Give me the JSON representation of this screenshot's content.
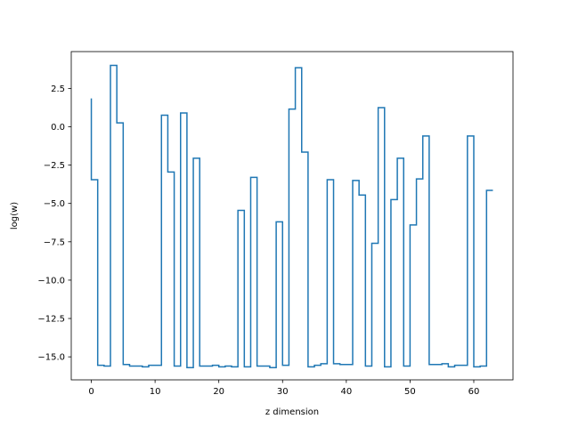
{
  "chart_data": {
    "type": "line",
    "drawstyle": "steps-pre",
    "xlabel": "z dimension",
    "ylabel": "log(w)",
    "xlim": [
      -3.15,
      66.15
    ],
    "ylim": [
      -16.5,
      4.9
    ],
    "grid": false,
    "x_ticks": [
      0,
      10,
      20,
      30,
      40,
      50,
      60
    ],
    "y_ticks": [
      2.5,
      0.0,
      -2.5,
      -5.0,
      -7.5,
      -10.0,
      -12.5,
      -15.0
    ],
    "x_tick_labels": [
      "0",
      "10",
      "20",
      "30",
      "40",
      "50",
      "60"
    ],
    "y_tick_labels": [
      "2.5",
      "0.0",
      "−2.5",
      "−5.0",
      "−7.5",
      "−10.0",
      "−12.5",
      "−15.0"
    ],
    "series": [
      {
        "color": "#1f77b4",
        "x": [
          0,
          1,
          2,
          3,
          4,
          5,
          6,
          7,
          8,
          9,
          10,
          11,
          12,
          13,
          14,
          15,
          16,
          17,
          18,
          19,
          20,
          21,
          22,
          23,
          24,
          25,
          26,
          27,
          28,
          29,
          30,
          31,
          32,
          33,
          34,
          35,
          36,
          37,
          38,
          39,
          40,
          41,
          42,
          43,
          44,
          45,
          46,
          47,
          48,
          49,
          50,
          51,
          52,
          53,
          54,
          55,
          56,
          57,
          58,
          59,
          60,
          61,
          62,
          63
        ],
        "values": [
          1.85,
          -3.45,
          -15.55,
          -15.6,
          4.0,
          0.25,
          -15.5,
          -15.6,
          -15.6,
          -15.65,
          -15.55,
          -15.55,
          0.75,
          -2.95,
          -15.6,
          0.9,
          -15.7,
          -2.05,
          -15.6,
          -15.6,
          -15.55,
          -15.65,
          -15.6,
          -15.65,
          -5.45,
          -15.65,
          -3.3,
          -15.6,
          -15.6,
          -15.7,
          -6.2,
          -15.55,
          1.15,
          3.85,
          -1.65,
          -15.65,
          -15.55,
          -15.45,
          -3.45,
          -15.45,
          -15.5,
          -15.5,
          -3.5,
          -4.45,
          -15.6,
          -7.6,
          1.25,
          -15.65,
          -4.75,
          -2.05,
          -15.6,
          -6.4,
          -3.4,
          -0.6,
          -15.5,
          -15.5,
          -15.45,
          -15.65,
          -15.55,
          -15.55,
          -0.6,
          -15.65,
          -15.6,
          -4.15
        ]
      }
    ]
  }
}
